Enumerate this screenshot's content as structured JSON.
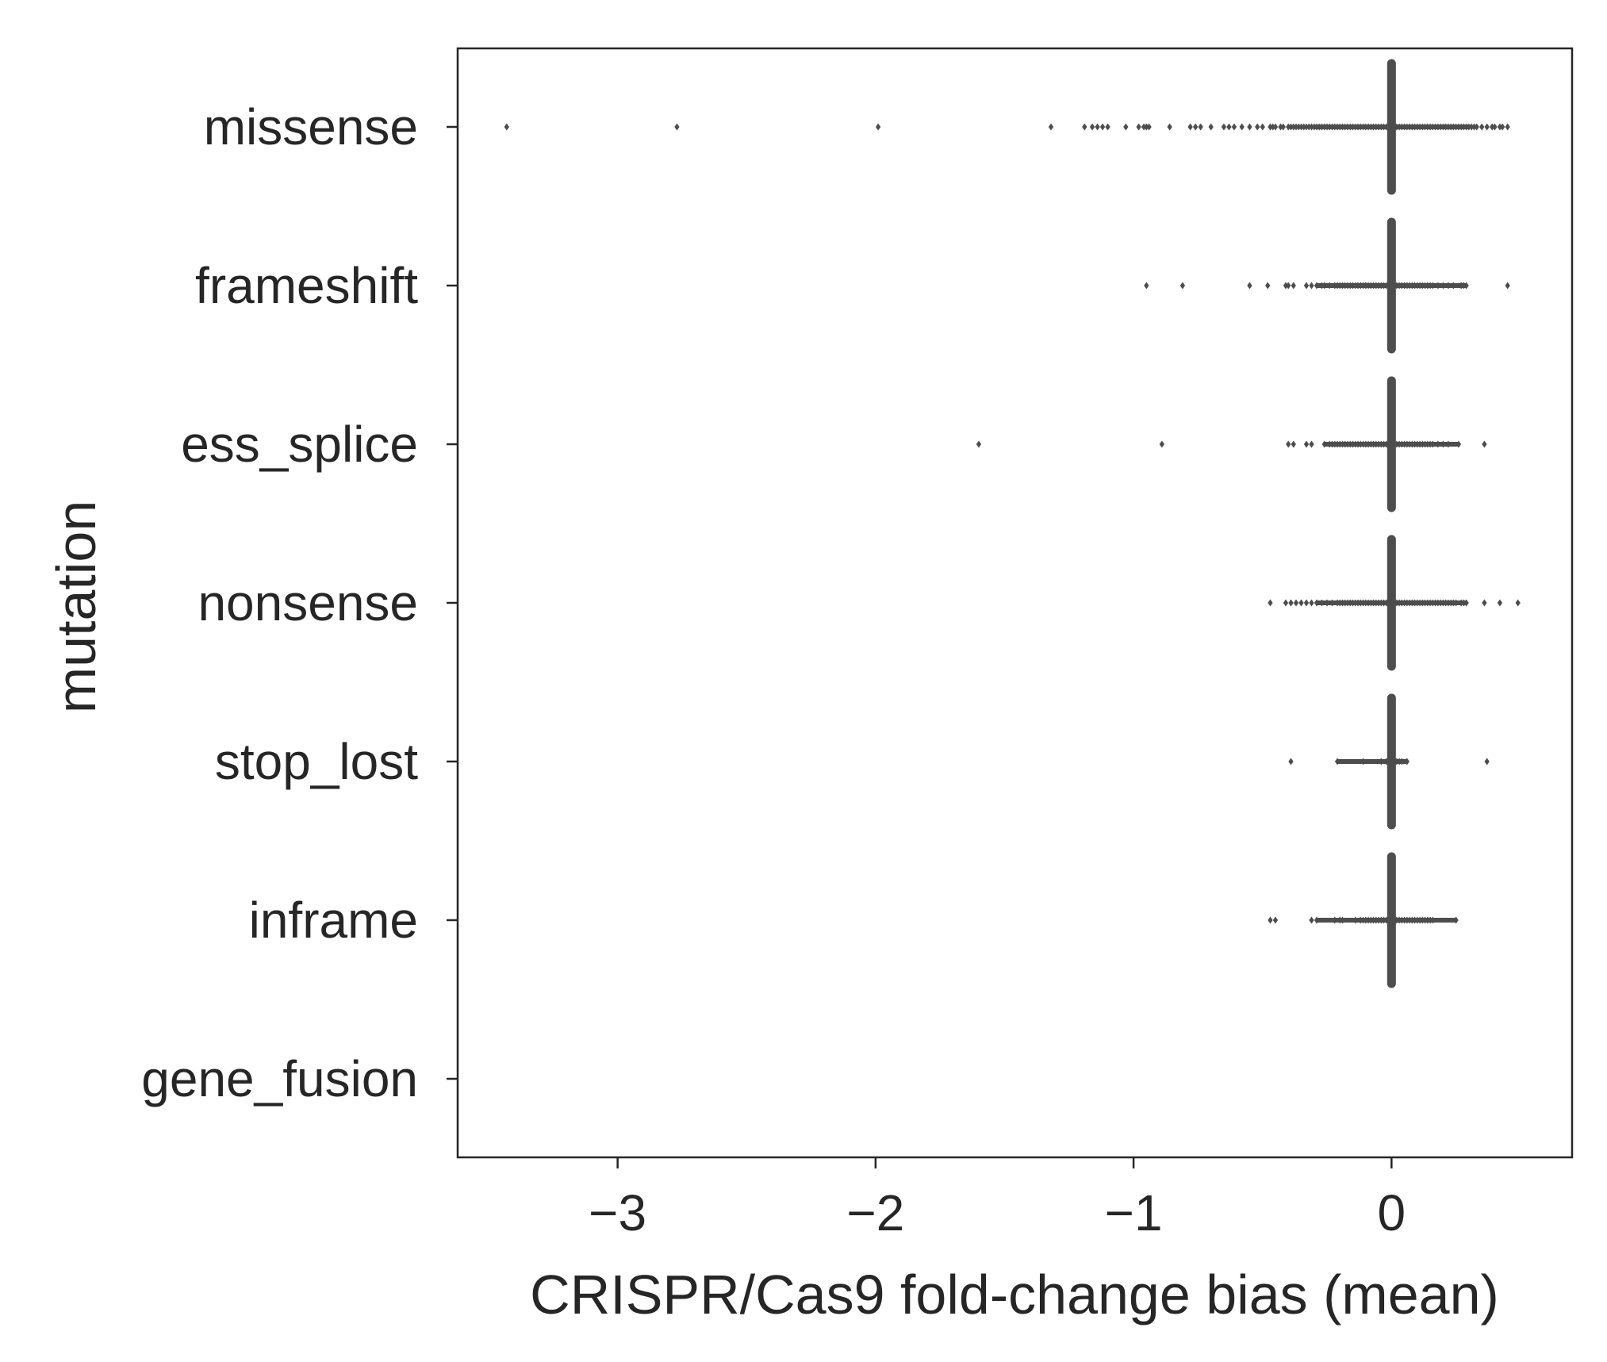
{
  "chart_data": {
    "type": "scatter",
    "title": "",
    "xlabel": "CRISPR/Cas9 fold-change bias (mean)",
    "ylabel": "mutation",
    "xlim": [
      -3.62,
      0.7
    ],
    "xticks": [
      -3,
      -2,
      -1,
      0
    ],
    "xtick_labels": [
      "−3",
      "−2",
      "−1",
      "0"
    ],
    "grid": false,
    "legend": "none",
    "colors": {
      "marker": "#4d4d4d",
      "spine": "#262626",
      "text": "#262626"
    },
    "categories": [
      "missense",
      "frameshift",
      "ess_splice",
      "nonsense",
      "stop_lost",
      "inframe",
      "gene_fusion"
    ],
    "zero_marker": {
      "x": 0,
      "categories": [
        "missense",
        "frameshift",
        "ess_splice",
        "nonsense",
        "stop_lost",
        "inframe"
      ]
    },
    "series": [
      {
        "category": "missense",
        "x": [
          -3.43,
          -2.77,
          -1.99,
          -1.32,
          -1.19,
          -1.16,
          -1.14,
          -1.12,
          -1.1,
          -1.03,
          -0.98,
          -0.96,
          -0.95,
          -0.94,
          -0.86,
          -0.78,
          -0.76,
          -0.74,
          -0.7,
          -0.65,
          -0.63,
          -0.61,
          -0.58,
          -0.55,
          -0.52,
          -0.5,
          -0.47,
          -0.46,
          -0.45,
          -0.43,
          -0.42,
          -0.4,
          -0.39,
          -0.38,
          -0.37,
          -0.36,
          -0.35,
          -0.34,
          -0.33,
          -0.32,
          -0.31,
          -0.3,
          -0.29,
          -0.28,
          -0.27,
          -0.26,
          -0.25,
          -0.24,
          -0.23,
          -0.22,
          -0.21,
          -0.2,
          -0.19,
          -0.18,
          -0.17,
          -0.16,
          -0.15,
          -0.14,
          -0.13,
          -0.12,
          -0.11,
          -0.1,
          -0.09,
          -0.08,
          -0.07,
          -0.06,
          -0.05,
          -0.04,
          -0.03,
          -0.02,
          -0.01,
          0.01,
          0.02,
          0.03,
          0.04,
          0.05,
          0.06,
          0.07,
          0.08,
          0.09,
          0.1,
          0.11,
          0.12,
          0.13,
          0.14,
          0.15,
          0.16,
          0.17,
          0.18,
          0.19,
          0.2,
          0.21,
          0.22,
          0.23,
          0.24,
          0.25,
          0.26,
          0.27,
          0.28,
          0.29,
          0.3,
          0.31,
          0.32,
          0.33,
          0.35,
          0.37,
          0.39,
          0.4,
          0.42,
          0.43,
          0.45
        ]
      },
      {
        "category": "frameshift",
        "x": [
          -0.95,
          -0.81,
          -0.55,
          -0.48,
          -0.41,
          -0.4,
          -0.38,
          -0.33,
          -0.31,
          -0.29,
          -0.27,
          -0.26,
          -0.24,
          -0.22,
          -0.21,
          -0.2,
          -0.19,
          -0.18,
          -0.17,
          -0.16,
          -0.15,
          -0.14,
          -0.13,
          -0.12,
          -0.11,
          -0.1,
          -0.09,
          -0.08,
          -0.07,
          -0.06,
          -0.05,
          -0.04,
          -0.03,
          -0.02,
          -0.01,
          0.01,
          0.02,
          0.03,
          0.04,
          0.05,
          0.06,
          0.07,
          0.08,
          0.09,
          0.1,
          0.11,
          0.12,
          0.13,
          0.14,
          0.15,
          0.16,
          0.18,
          0.2,
          0.22,
          0.24,
          0.27,
          0.28,
          0.29,
          0.45
        ]
      },
      {
        "category": "ess_splice",
        "x": [
          -1.6,
          -0.89,
          -0.4,
          -0.38,
          -0.33,
          -0.31,
          -0.26,
          -0.24,
          -0.23,
          -0.22,
          -0.21,
          -0.2,
          -0.19,
          -0.18,
          -0.17,
          -0.16,
          -0.15,
          -0.14,
          -0.13,
          -0.12,
          -0.11,
          -0.1,
          -0.09,
          -0.08,
          -0.07,
          -0.06,
          -0.05,
          -0.04,
          -0.03,
          -0.02,
          -0.01,
          0.01,
          0.02,
          0.03,
          0.04,
          0.05,
          0.06,
          0.07,
          0.08,
          0.09,
          0.1,
          0.11,
          0.12,
          0.13,
          0.14,
          0.15,
          0.16,
          0.18,
          0.2,
          0.22,
          0.26,
          0.36
        ]
      },
      {
        "category": "nonsense",
        "x": [
          -0.47,
          -0.41,
          -0.39,
          -0.37,
          -0.35,
          -0.33,
          -0.31,
          -0.29,
          -0.27,
          -0.25,
          -0.23,
          -0.21,
          -0.2,
          -0.19,
          -0.18,
          -0.17,
          -0.16,
          -0.15,
          -0.14,
          -0.13,
          -0.12,
          -0.11,
          -0.1,
          -0.09,
          -0.08,
          -0.07,
          -0.06,
          -0.05,
          -0.04,
          -0.03,
          -0.02,
          -0.01,
          0.01,
          0.02,
          0.03,
          0.04,
          0.05,
          0.06,
          0.07,
          0.08,
          0.09,
          0.1,
          0.11,
          0.12,
          0.13,
          0.14,
          0.15,
          0.16,
          0.17,
          0.18,
          0.19,
          0.2,
          0.21,
          0.22,
          0.23,
          0.24,
          0.25,
          0.27,
          0.28,
          0.29,
          0.36,
          0.42,
          0.49
        ]
      },
      {
        "category": "stop_lost",
        "x": [
          -0.39,
          -0.21,
          -0.11,
          -0.04,
          -0.02,
          0.01,
          0.02,
          0.03,
          0.04,
          0.06,
          0.37
        ]
      },
      {
        "category": "inframe",
        "x": [
          -0.47,
          -0.45,
          -0.31,
          -0.29,
          -0.22,
          -0.2,
          -0.19,
          -0.14,
          -0.12,
          -0.11,
          -0.1,
          -0.09,
          -0.08,
          -0.07,
          -0.06,
          -0.05,
          -0.04,
          -0.03,
          -0.02,
          -0.01,
          0.01,
          0.02,
          0.03,
          0.04,
          0.05,
          0.06,
          0.07,
          0.08,
          0.09,
          0.1,
          0.11,
          0.12,
          0.13,
          0.14,
          0.15,
          0.16,
          0.25
        ]
      },
      {
        "category": "gene_fusion",
        "x": []
      }
    ]
  }
}
